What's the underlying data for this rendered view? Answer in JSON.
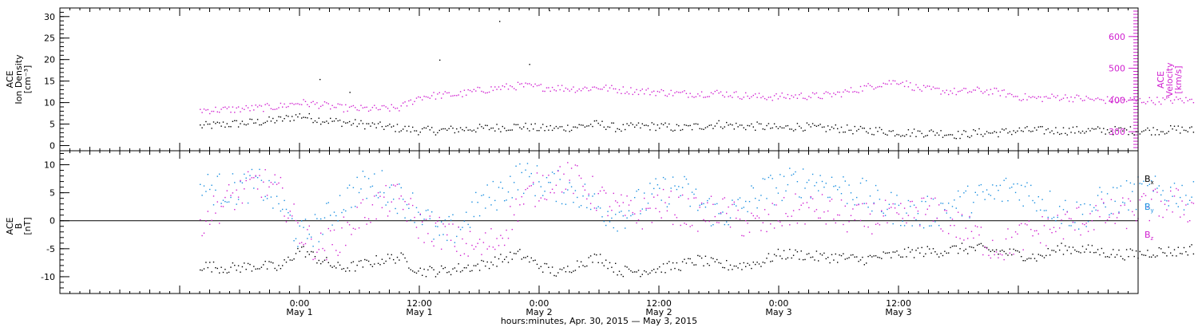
{
  "chart_data": [
    {
      "panel": "ion-density-and-velocity",
      "type": "scatter",
      "left_axis_label": [
        "ACE",
        "Ion Density",
        "[cm⁻³]"
      ],
      "right_axis_label": [
        "ACE",
        "Velocity",
        "[km/s]"
      ],
      "left_ticks": [
        "0",
        "5",
        "10",
        "15",
        "20",
        "25",
        "30"
      ],
      "left_tick_values": [
        0,
        5,
        10,
        15,
        20,
        25,
        30
      ],
      "right_ticks": [
        "300",
        "400",
        "500",
        "600"
      ],
      "right_tick_values": [
        300,
        400,
        500,
        600
      ],
      "ylim_left": [
        -1.2,
        32
      ],
      "ylim_right": [
        240,
        690
      ],
      "x_unit": "hours since Apr. 30, 2015 00:00",
      "series": [
        {
          "name": "Ion Density",
          "axis": "left",
          "color": "#000000",
          "x": [
            14,
            17,
            20,
            22,
            24,
            26,
            28,
            30,
            32,
            34,
            36,
            38,
            40,
            42,
            44,
            46,
            48,
            50,
            52,
            54,
            56,
            58,
            60,
            62,
            64,
            66,
            68,
            70,
            72,
            74,
            76,
            78,
            80,
            82,
            84,
            86,
            88,
            90,
            92,
            94,
            96,
            98,
            100,
            102,
            104,
            106,
            108,
            110,
            112,
            113.5
          ],
          "y": [
            4.5,
            5.0,
            5.5,
            6.0,
            7.0,
            6.0,
            5.5,
            5.0,
            4.5,
            4.0,
            3.5,
            3.5,
            3.8,
            4.0,
            4.2,
            4.5,
            4.0,
            4.0,
            4.5,
            5.0,
            4.0,
            4.5,
            4.5,
            4.0,
            4.5,
            5.0,
            4.5,
            4.5,
            4.0,
            4.5,
            4.0,
            4.0,
            3.5,
            3.5,
            3.0,
            3.0,
            3.0,
            2.5,
            3.0,
            3.0,
            3.5,
            3.5,
            3.5,
            3.5,
            3.5,
            3.5,
            3.5,
            3.5,
            3.8,
            3.5
          ]
        },
        {
          "name": "Velocity",
          "axis": "right",
          "color": "#d020d0",
          "x": [
            14,
            17,
            20,
            22,
            24,
            26,
            28,
            30,
            32,
            34,
            36,
            38,
            40,
            42,
            44,
            46,
            48,
            50,
            52,
            54,
            56,
            58,
            60,
            62,
            64,
            66,
            68,
            70,
            72,
            74,
            76,
            78,
            80,
            82,
            84,
            86,
            88,
            90,
            92,
            94,
            96,
            98,
            100,
            102,
            104,
            106,
            108,
            110,
            112,
            113.5
          ],
          "y": [
            368,
            370,
            375,
            380,
            392,
            385,
            375,
            372,
            372,
            375,
            410,
            415,
            418,
            430,
            438,
            445,
            440,
            438,
            435,
            440,
            432,
            428,
            425,
            420,
            420,
            422,
            415,
            410,
            410,
            413,
            412,
            420,
            435,
            450,
            460,
            435,
            430,
            425,
            430,
            425,
            410,
            405,
            410,
            405,
            400,
            400,
            398,
            398,
            400,
            398
          ]
        }
      ]
    },
    {
      "panel": "magnetic-field",
      "type": "scatter",
      "left_axis_label": [
        "ACE",
        "B",
        "[nT]"
      ],
      "left_ticks": [
        "-10",
        "-5",
        "0",
        "5",
        "10"
      ],
      "left_tick_values": [
        -10,
        -5,
        0,
        5,
        10
      ],
      "ylim_left": [
        -13,
        12.5
      ],
      "zero_line": true,
      "series": [
        {
          "name": "Bx",
          "color": "#000000",
          "x": [
            14,
            17,
            20,
            22,
            24,
            26,
            28,
            30,
            32,
            34,
            36,
            38,
            40,
            42,
            44,
            46,
            48,
            50,
            52,
            54,
            56,
            58,
            60,
            62,
            64,
            66,
            68,
            70,
            72,
            74,
            76,
            78,
            80,
            82,
            84,
            86,
            88,
            90,
            92,
            94,
            96,
            98,
            100,
            102,
            104,
            106,
            108,
            110,
            112,
            113.5
          ],
          "y": [
            -8,
            -8.5,
            -8,
            -8.5,
            -5,
            -7,
            -8.5,
            -8,
            -7,
            -6.5,
            -9,
            -9,
            -8.5,
            -8,
            -7,
            -6,
            -8,
            -9.5,
            -7.5,
            -6.5,
            -9,
            -9,
            -8.5,
            -8,
            -7,
            -8,
            -8,
            -7.5,
            -6,
            -6,
            -6.5,
            -6.5,
            -7,
            -6.5,
            -6,
            -5.5,
            -5.5,
            -5,
            -5,
            -5.5,
            -6,
            -6.5,
            -5,
            -5,
            -5.5,
            -6,
            -6,
            -5.5,
            -5.5,
            -5
          ]
        },
        {
          "name": "By",
          "color": "#1a8fe0",
          "x": [
            14,
            17,
            20,
            22,
            24,
            26,
            28,
            30,
            32,
            34,
            36,
            38,
            40,
            42,
            44,
            46,
            48,
            50,
            52,
            54,
            56,
            58,
            60,
            62,
            64,
            66,
            68,
            70,
            72,
            74,
            76,
            78,
            80,
            82,
            84,
            86,
            88,
            90,
            92,
            94,
            96,
            98,
            100,
            102,
            104,
            106,
            108,
            110,
            112,
            113.5
          ],
          "y": [
            6,
            5.5,
            6.5,
            3,
            -3,
            -1,
            3,
            6,
            6.5,
            4,
            2,
            -3,
            -1,
            3,
            5,
            8,
            7,
            6,
            5,
            2,
            1,
            3,
            5,
            6,
            3,
            1,
            2,
            5,
            6,
            7,
            7,
            6,
            5,
            3,
            2,
            1,
            2,
            3,
            4,
            5,
            6,
            4,
            2,
            1,
            3,
            4,
            5,
            5,
            5,
            4
          ]
        },
        {
          "name": "Bz",
          "color": "#d020d0",
          "x": [
            14,
            17,
            20,
            22,
            24,
            26,
            28,
            30,
            32,
            34,
            36,
            38,
            40,
            42,
            44,
            46,
            48,
            50,
            52,
            54,
            56,
            58,
            60,
            62,
            64,
            66,
            68,
            70,
            72,
            74,
            76,
            78,
            80,
            82,
            84,
            86,
            88,
            90,
            92,
            94,
            96,
            98,
            100,
            102,
            104,
            106,
            108,
            110,
            112,
            113.5
          ],
          "y": [
            0,
            4,
            7,
            5,
            -2,
            -5,
            -3,
            1,
            3,
            4,
            -1,
            -2,
            -4,
            -5,
            -3,
            3,
            6,
            8,
            7,
            4,
            2,
            1,
            3,
            2,
            1,
            2,
            0,
            -1,
            1,
            2,
            2,
            1,
            0,
            1,
            0,
            2,
            1,
            -1,
            -3,
            -5,
            -3,
            -2,
            -1,
            0,
            1,
            1,
            2,
            3,
            3,
            2
          ]
        }
      ],
      "legend": [
        {
          "label": "B",
          "sub": "x",
          "color": "#000000"
        },
        {
          "label": "B",
          "sub": "y",
          "color": "#1a8fe0"
        },
        {
          "label": "B",
          "sub": "z",
          "color": "#d020d0"
        }
      ],
      "legend_placement": "right"
    }
  ],
  "x_axis": {
    "xlim": [
      0,
      108
    ],
    "ticks": [
      {
        "value": 24,
        "line1": "0:00",
        "line2": "May 1"
      },
      {
        "value": 36,
        "line1": "12:00",
        "line2": "May 1"
      },
      {
        "value": 48,
        "line1": "0:00",
        "line2": "May 2"
      },
      {
        "value": 60,
        "line1": "12:00",
        "line2": "May 2"
      },
      {
        "value": 72,
        "line1": "0:00",
        "line2": "May 3"
      },
      {
        "value": 84,
        "line1": "12:00",
        "line2": "May 3"
      }
    ],
    "xlabel": "hours:minutes, Apr. 30, 2015 — May  3, 2015"
  }
}
